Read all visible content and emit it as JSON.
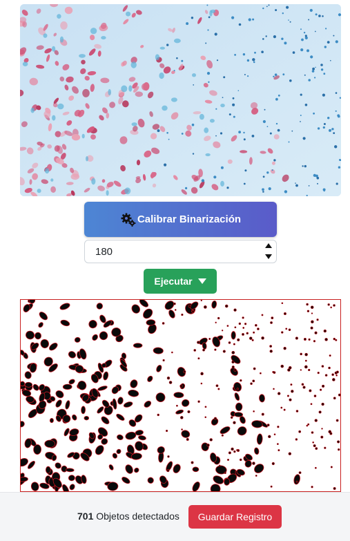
{
  "calibrate": {
    "label": "Calibrar Binarización",
    "icon": "gears-icon"
  },
  "threshold": {
    "value": "180"
  },
  "run": {
    "label": "Ejecutar",
    "icon": "caret-down-icon"
  },
  "result": {
    "count": "701",
    "count_label": "Objetos detectados"
  },
  "save": {
    "label": "Guardar Registro"
  },
  "colors": {
    "calibrate_gradient_start": "#4d86d4",
    "calibrate_gradient_end": "#5a5bc9",
    "run_button": "#28a15a",
    "save_button": "#dc3545",
    "canvas_border": "#c81e1e"
  }
}
